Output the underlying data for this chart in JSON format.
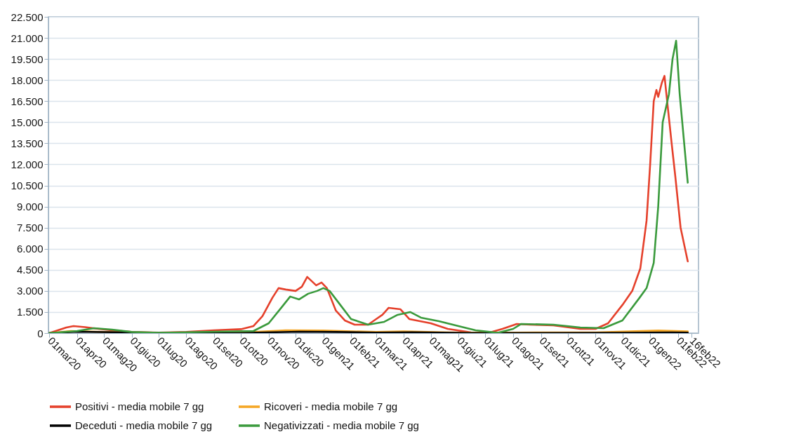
{
  "chart_data": {
    "type": "line",
    "legend": "bottom",
    "grid": "y",
    "marker": "none",
    "line_style": "solid",
    "xlim": [
      "2020-02-29",
      "2022-02-24"
    ],
    "ylim": [
      0,
      22500
    ],
    "xticks": [
      {
        "value": "2020-03-01",
        "label": "01mar20"
      },
      {
        "value": "2020-04-01",
        "label": "01apr20"
      },
      {
        "value": "2020-05-01",
        "label": "01mag20"
      },
      {
        "value": "2020-06-01",
        "label": "01giu20"
      },
      {
        "value": "2020-07-01",
        "label": "01lug20"
      },
      {
        "value": "2020-08-01",
        "label": "01ago20"
      },
      {
        "value": "2020-09-01",
        "label": "01set20"
      },
      {
        "value": "2020-10-01",
        "label": "01ott20"
      },
      {
        "value": "2020-11-01",
        "label": "01nov20"
      },
      {
        "value": "2020-12-01",
        "label": "01dic20"
      },
      {
        "value": "2021-01-01",
        "label": "01gen21"
      },
      {
        "value": "2021-02-01",
        "label": "01feb21"
      },
      {
        "value": "2021-03-01",
        "label": "01mar21"
      },
      {
        "value": "2021-04-01",
        "label": "01apr21"
      },
      {
        "value": "2021-05-01",
        "label": "01mag21"
      },
      {
        "value": "2021-06-01",
        "label": "01giu21"
      },
      {
        "value": "2021-07-01",
        "label": "01lug21"
      },
      {
        "value": "2021-08-01",
        "label": "01ago21"
      },
      {
        "value": "2021-09-01",
        "label": "01set21"
      },
      {
        "value": "2021-10-01",
        "label": "01ott21"
      },
      {
        "value": "2021-11-01",
        "label": "01nov21"
      },
      {
        "value": "2021-12-01",
        "label": "01dic21"
      },
      {
        "value": "2022-01-01",
        "label": "01gen22"
      },
      {
        "value": "2022-02-01",
        "label": "01feb22"
      },
      {
        "value": "2022-02-16",
        "label": "16feb22"
      }
    ],
    "yticks": [
      0,
      {
        "value": 1500,
        "label": "1.500"
      },
      {
        "value": 3000,
        "label": "3.000"
      },
      {
        "value": 4500,
        "label": "4.500"
      },
      {
        "value": 6000,
        "label": "6.000"
      },
      {
        "value": 7500,
        "label": "7.500"
      },
      {
        "value": 9000,
        "label": "9.000"
      },
      {
        "value": 10500,
        "label": "10.500"
      },
      {
        "value": 12000,
        "label": "12.000"
      },
      {
        "value": 13500,
        "label": "13.500"
      },
      {
        "value": 15000,
        "label": "15.000"
      },
      {
        "value": 16500,
        "label": "16.500"
      },
      {
        "value": 18000,
        "label": "18.000"
      },
      {
        "value": 19500,
        "label": "19.500"
      },
      {
        "value": 21000,
        "label": "21.000"
      },
      {
        "value": 22500,
        "label": "22.500"
      }
    ],
    "series": [
      {
        "name": "Positivi - media mobile 7 gg",
        "color": "#e5402b",
        "x": [
          "2020-03-01",
          "2020-03-20",
          "2020-03-28",
          "2020-04-10",
          "2020-04-25",
          "2020-05-10",
          "2020-06-01",
          "2020-07-01",
          "2020-08-01",
          "2020-09-01",
          "2020-10-01",
          "2020-10-15",
          "2020-10-25",
          "2020-11-05",
          "2020-11-12",
          "2020-11-20",
          "2020-12-01",
          "2020-12-08",
          "2020-12-14",
          "2020-12-24",
          "2020-12-30",
          "2021-01-05",
          "2021-01-15",
          "2021-01-25",
          "2021-02-05",
          "2021-02-20",
          "2021-03-01",
          "2021-03-08",
          "2021-03-15",
          "2021-03-28",
          "2021-04-07",
          "2021-05-01",
          "2021-05-20",
          "2021-06-15",
          "2021-07-05",
          "2021-07-20",
          "2021-08-05",
          "2021-08-20",
          "2021-09-15",
          "2021-10-15",
          "2021-11-01",
          "2021-11-15",
          "2021-12-01",
          "2021-12-12",
          "2021-12-21",
          "2021-12-28",
          "2022-01-01",
          "2022-01-05",
          "2022-01-08",
          "2022-01-10",
          "2022-01-14",
          "2022-01-17",
          "2022-01-20",
          "2022-01-25",
          "2022-01-29",
          "2022-02-04",
          "2022-02-10",
          "2022-02-12"
        ],
        "values": [
          0,
          400,
          500,
          420,
          300,
          200,
          80,
          40,
          80,
          200,
          280,
          500,
          1200,
          2500,
          3200,
          3100,
          3000,
          3300,
          4000,
          3400,
          3600,
          3200,
          1600,
          900,
          600,
          600,
          1000,
          1300,
          1800,
          1700,
          1000,
          700,
          300,
          50,
          30,
          300,
          650,
          600,
          550,
          300,
          300,
          700,
          2000,
          3000,
          4600,
          8000,
          12000,
          16500,
          17300,
          16800,
          17800,
          18300,
          16500,
          13500,
          11200,
          7500,
          5700,
          5100
        ]
      },
      {
        "name": "Ricoveri - media mobile 7 gg",
        "color": "#f5a623",
        "x": [
          "2020-03-01",
          "2020-03-25",
          "2020-05-01",
          "2020-07-01",
          "2020-10-01",
          "2020-11-20",
          "2021-01-01",
          "2021-03-01",
          "2021-04-01",
          "2021-06-01",
          "2021-08-01",
          "2021-11-01",
          "2022-01-10",
          "2022-02-12"
        ],
        "values": [
          0,
          150,
          80,
          10,
          40,
          200,
          180,
          80,
          120,
          30,
          40,
          50,
          180,
          120
        ]
      },
      {
        "name": "Deceduti - media mobile 7 gg",
        "color": "#000000",
        "x": [
          "2020-03-01",
          "2020-04-01",
          "2020-05-15",
          "2020-07-01",
          "2020-10-01",
          "2020-12-05",
          "2021-01-15",
          "2021-03-01",
          "2021-04-10",
          "2021-06-15",
          "2021-09-01",
          "2021-12-01",
          "2022-01-25",
          "2022-02-12"
        ],
        "values": [
          0,
          100,
          60,
          10,
          10,
          100,
          80,
          40,
          60,
          10,
          10,
          20,
          50,
          40
        ]
      },
      {
        "name": "Negativizzati - media mobile 7 gg",
        "color": "#3a9a3c",
        "x": [
          "2020-03-01",
          "2020-04-01",
          "2020-04-20",
          "2020-05-10",
          "2020-06-01",
          "2020-07-01",
          "2020-09-01",
          "2020-10-15",
          "2020-11-01",
          "2020-11-15",
          "2020-11-25",
          "2020-12-05",
          "2020-12-15",
          "2020-12-25",
          "2021-01-01",
          "2021-01-08",
          "2021-01-20",
          "2021-02-01",
          "2021-02-20",
          "2021-03-10",
          "2021-03-25",
          "2021-04-08",
          "2021-04-20",
          "2021-05-10",
          "2021-06-01",
          "2021-06-20",
          "2021-07-15",
          "2021-08-01",
          "2021-08-10",
          "2021-09-15",
          "2021-10-15",
          "2021-11-10",
          "2021-12-01",
          "2021-12-20",
          "2021-12-28",
          "2022-01-05",
          "2022-01-10",
          "2022-01-15",
          "2022-01-22",
          "2022-01-26",
          "2022-01-30",
          "2022-02-03",
          "2022-02-12"
        ],
        "values": [
          0,
          150,
          350,
          250,
          80,
          20,
          100,
          150,
          700,
          1800,
          2600,
          2400,
          2800,
          3000,
          3200,
          3000,
          2000,
          1000,
          600,
          800,
          1300,
          1500,
          1100,
          850,
          500,
          200,
          20,
          300,
          650,
          600,
          400,
          350,
          900,
          2500,
          3200,
          5000,
          9000,
          15000,
          17000,
          19500,
          20800,
          17000,
          10700
        ]
      }
    ]
  }
}
